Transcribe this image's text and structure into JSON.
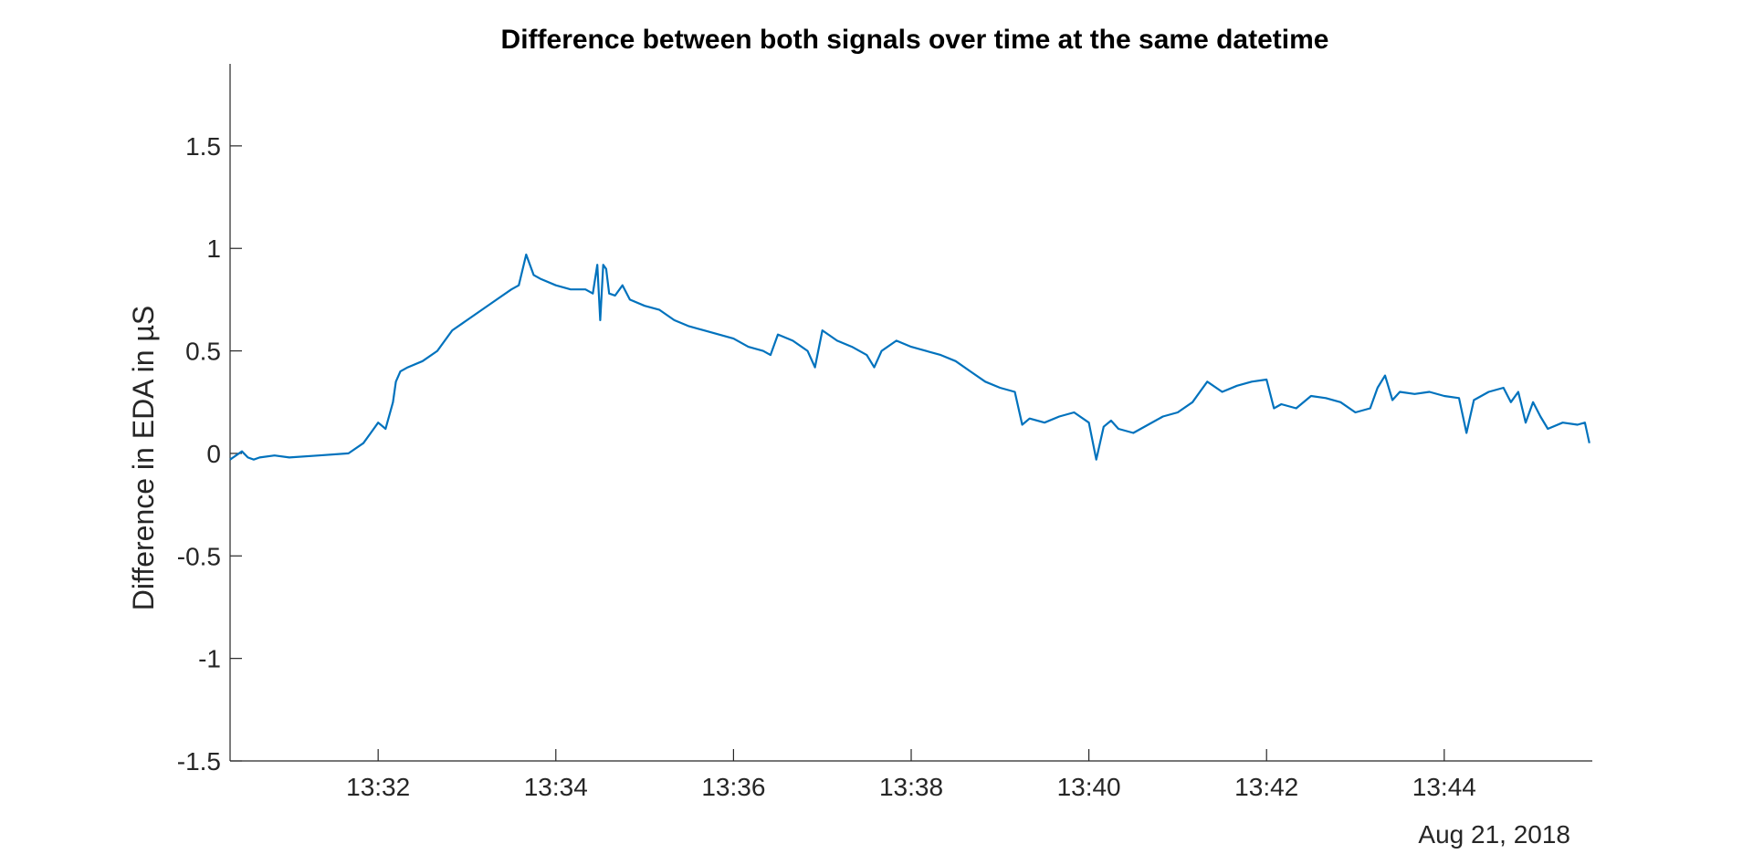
{
  "chart_data": {
    "type": "line",
    "title": "Difference between both signals over time at the same datetime",
    "xlabel": "",
    "ylabel": "Difference in EDA in µS",
    "date_label": "Aug 21, 2018",
    "xlim": [
      "13:30:20",
      "13:45:40"
    ],
    "ylim": [
      -1.5,
      1.9
    ],
    "y_ticks": [
      -1.5,
      -1,
      -0.5,
      0,
      0.5,
      1,
      1.5
    ],
    "y_tick_labels": [
      "-1.5",
      "-1",
      "-0.5",
      "0",
      "0.5",
      "1",
      "1.5"
    ],
    "x_ticks": [
      "13:32",
      "13:34",
      "13:36",
      "13:38",
      "13:40",
      "13:42",
      "13:44"
    ],
    "grid": false,
    "line_color": "#0072BD",
    "series": [
      {
        "x": [
          "13:30:20",
          "13:30:24",
          "13:30:28",
          "13:30:32",
          "13:30:36",
          "13:30:40",
          "13:30:50",
          "13:31:00",
          "13:31:20",
          "13:31:40",
          "13:31:50",
          "13:31:55",
          "13:32:00",
          "13:32:05",
          "13:32:10",
          "13:32:12",
          "13:32:15",
          "13:32:20",
          "13:32:30",
          "13:32:40",
          "13:32:50",
          "13:33:00",
          "13:33:10",
          "13:33:20",
          "13:33:30",
          "13:33:35",
          "13:33:40",
          "13:33:45",
          "13:33:50",
          "13:34:00",
          "13:34:10",
          "13:34:20",
          "13:34:25",
          "13:34:28",
          "13:34:30",
          "13:34:32",
          "13:34:34",
          "13:34:36",
          "13:34:40",
          "13:34:45",
          "13:34:50",
          "13:35:00",
          "13:35:10",
          "13:35:20",
          "13:35:30",
          "13:35:40",
          "13:35:50",
          "13:36:00",
          "13:36:10",
          "13:36:20",
          "13:36:25",
          "13:36:30",
          "13:36:40",
          "13:36:50",
          "13:36:55",
          "13:37:00",
          "13:37:10",
          "13:37:20",
          "13:37:30",
          "13:37:35",
          "13:37:40",
          "13:37:50",
          "13:38:00",
          "13:38:10",
          "13:38:20",
          "13:38:30",
          "13:38:40",
          "13:38:50",
          "13:39:00",
          "13:39:10",
          "13:39:15",
          "13:39:20",
          "13:39:30",
          "13:39:40",
          "13:39:50",
          "13:40:00",
          "13:40:05",
          "13:40:10",
          "13:40:15",
          "13:40:20",
          "13:40:30",
          "13:40:40",
          "13:40:50",
          "13:41:00",
          "13:41:10",
          "13:41:15",
          "13:41:20",
          "13:41:30",
          "13:41:40",
          "13:41:50",
          "13:42:00",
          "13:42:05",
          "13:42:10",
          "13:42:20",
          "13:42:30",
          "13:42:40",
          "13:42:50",
          "13:43:00",
          "13:43:10",
          "13:43:15",
          "13:43:20",
          "13:43:25",
          "13:43:30",
          "13:43:40",
          "13:43:50",
          "13:44:00",
          "13:44:10",
          "13:44:15",
          "13:44:20",
          "13:44:30",
          "13:44:40",
          "13:44:45",
          "13:44:50",
          "13:44:55",
          "13:45:00",
          "13:45:05",
          "13:45:10",
          "13:45:20",
          "13:45:30",
          "13:45:35",
          "13:45:38"
        ],
        "values": [
          -0.03,
          -0.01,
          0.01,
          -0.02,
          -0.03,
          -0.02,
          -0.01,
          -0.02,
          -0.01,
          0.0,
          0.05,
          0.1,
          0.15,
          0.12,
          0.25,
          0.35,
          0.4,
          0.42,
          0.45,
          0.5,
          0.6,
          0.65,
          0.7,
          0.75,
          0.8,
          0.82,
          0.97,
          0.87,
          0.85,
          0.82,
          0.8,
          0.8,
          0.78,
          0.92,
          0.65,
          0.92,
          0.9,
          0.78,
          0.77,
          0.82,
          0.75,
          0.72,
          0.7,
          0.65,
          0.62,
          0.6,
          0.58,
          0.56,
          0.52,
          0.5,
          0.48,
          0.58,
          0.55,
          0.5,
          0.42,
          0.6,
          0.55,
          0.52,
          0.48,
          0.42,
          0.5,
          0.55,
          0.52,
          0.5,
          0.48,
          0.45,
          0.4,
          0.35,
          0.32,
          0.3,
          0.14,
          0.17,
          0.15,
          0.18,
          0.2,
          0.15,
          -0.03,
          0.13,
          0.16,
          0.12,
          0.1,
          0.14,
          0.18,
          0.2,
          0.25,
          0.3,
          0.35,
          0.3,
          0.33,
          0.35,
          0.36,
          0.22,
          0.24,
          0.22,
          0.28,
          0.27,
          0.25,
          0.2,
          0.22,
          0.32,
          0.38,
          0.26,
          0.3,
          0.29,
          0.3,
          0.28,
          0.27,
          0.1,
          0.26,
          0.3,
          0.32,
          0.25,
          0.3,
          0.15,
          0.25,
          0.18,
          0.12,
          0.15,
          0.14,
          0.15,
          0.05
        ]
      }
    ]
  }
}
